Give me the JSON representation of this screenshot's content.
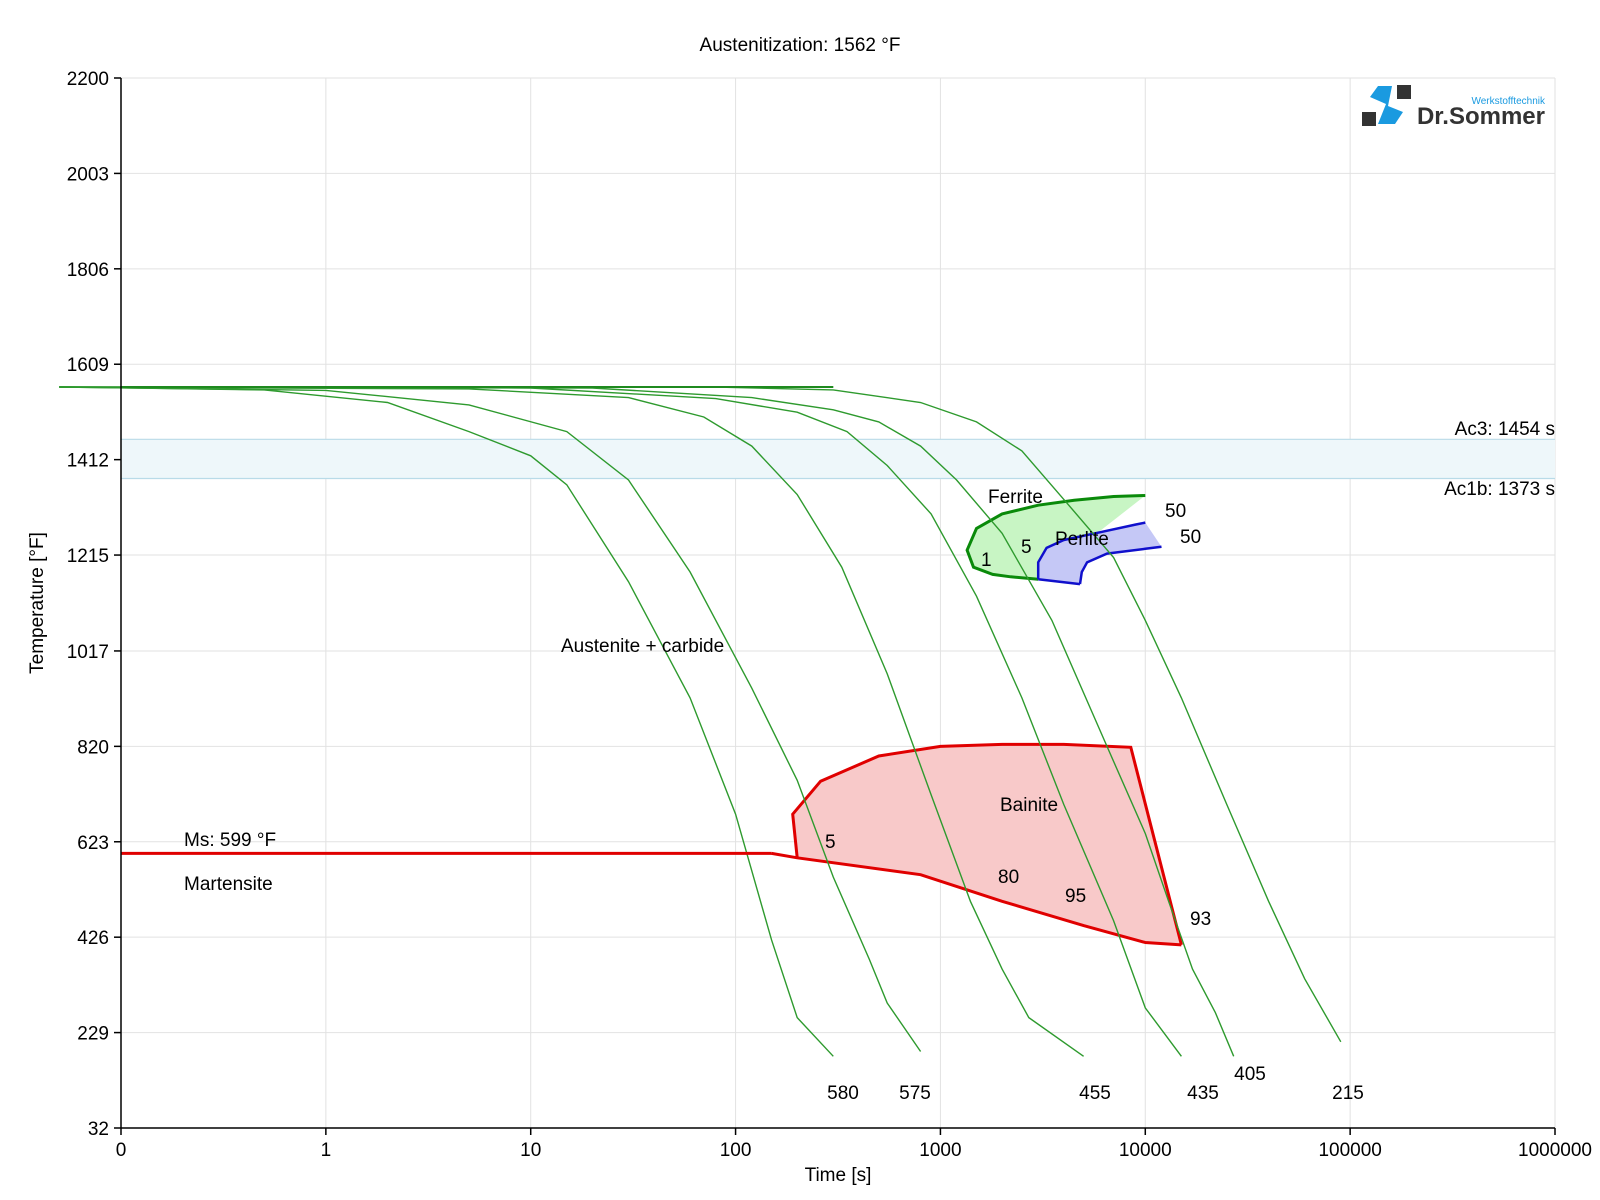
{
  "chart_data": {
    "type": "line",
    "title": "Austenitization: 1562 °F",
    "xlabel": "Time [s]",
    "ylabel": "Temperature [°F]",
    "x_scale": "log",
    "x_ticks": [
      "0",
      "1",
      "10",
      "100",
      "1000",
      "10000",
      "100000",
      "1000000"
    ],
    "y_ticks": [
      2200,
      2003,
      1806,
      1609,
      1412,
      1215,
      1017,
      820,
      623,
      426,
      229,
      32
    ],
    "ylim": [
      32,
      2200
    ],
    "grid": true,
    "logo": {
      "name": "Dr.Sommer",
      "subtitle": "Werkstofftechnik"
    },
    "colors": {
      "cooling": "#2e9a2e",
      "ferrite": "#0a8a0a",
      "perlite": "#1010cc",
      "bainite": "#e00000",
      "band": "#cfe8f0"
    },
    "critical_temps": {
      "ac3": {
        "label": "Ac3: 1454 s",
        "temp": 1454
      },
      "ac1b": {
        "label": "Ac1b: 1373 s",
        "temp": 1373
      }
    },
    "ms": {
      "label": "Ms: 599 °F",
      "temp": 599,
      "x_end": 150
    },
    "phase_labels": {
      "martensite": "Martensite",
      "austenite": "Austenite + carbide",
      "ferrite": "Ferrite",
      "perlite": "Perlite",
      "bainite": "Bainite"
    },
    "start_temp": 1562,
    "cooling_curves": [
      {
        "label": "580",
        "points": [
          [
            0.05,
            1562
          ],
          [
            0.5,
            1556
          ],
          [
            2,
            1530
          ],
          [
            5,
            1470
          ],
          [
            10,
            1420
          ],
          [
            15,
            1360
          ],
          [
            30,
            1160
          ],
          [
            60,
            920
          ],
          [
            100,
            680
          ],
          [
            150,
            420
          ],
          [
            200,
            260
          ],
          [
            300,
            180
          ]
        ]
      },
      {
        "label": "575",
        "points": [
          [
            0.05,
            1562
          ],
          [
            1,
            1555
          ],
          [
            5,
            1525
          ],
          [
            15,
            1470
          ],
          [
            30,
            1370
          ],
          [
            60,
            1180
          ],
          [
            120,
            940
          ],
          [
            200,
            750
          ],
          [
            300,
            550
          ],
          [
            450,
            380
          ],
          [
            550,
            290
          ],
          [
            800,
            190
          ]
        ]
      },
      {
        "label": "455",
        "points": [
          [
            0.05,
            1562
          ],
          [
            5,
            1558
          ],
          [
            30,
            1540
          ],
          [
            70,
            1500
          ],
          [
            120,
            1440
          ],
          [
            200,
            1340
          ],
          [
            330,
            1190
          ],
          [
            550,
            970
          ],
          [
            900,
            720
          ],
          [
            1400,
            500
          ],
          [
            2000,
            360
          ],
          [
            2700,
            260
          ],
          [
            5000,
            180
          ]
        ]
      },
      {
        "label": "435",
        "points": [
          [
            0.05,
            1562
          ],
          [
            10,
            1560
          ],
          [
            80,
            1538
          ],
          [
            200,
            1510
          ],
          [
            350,
            1470
          ],
          [
            550,
            1400
          ],
          [
            900,
            1300
          ],
          [
            1500,
            1130
          ],
          [
            2500,
            920
          ],
          [
            4000,
            700
          ],
          [
            7000,
            460
          ],
          [
            10000,
            280
          ],
          [
            15000,
            180
          ]
        ]
      },
      {
        "label": "405",
        "points": [
          [
            0.05,
            1562
          ],
          [
            20,
            1560
          ],
          [
            120,
            1540
          ],
          [
            300,
            1515
          ],
          [
            500,
            1490
          ],
          [
            800,
            1440
          ],
          [
            1200,
            1370
          ],
          [
            2000,
            1260
          ],
          [
            3500,
            1080
          ],
          [
            6500,
            820
          ],
          [
            10000,
            640
          ],
          [
            13000,
            500
          ],
          [
            17000,
            360
          ],
          [
            22000,
            270
          ],
          [
            27000,
            180
          ]
        ]
      },
      {
        "label": "215",
        "points": [
          [
            0.05,
            1562
          ],
          [
            80,
            1562
          ],
          [
            300,
            1556
          ],
          [
            800,
            1530
          ],
          [
            1500,
            1490
          ],
          [
            2500,
            1430
          ],
          [
            4000,
            1330
          ],
          [
            7000,
            1210
          ],
          [
            10000,
            1080
          ],
          [
            15000,
            920
          ],
          [
            25000,
            700
          ],
          [
            40000,
            500
          ],
          [
            60000,
            340
          ],
          [
            90000,
            210
          ]
        ]
      }
    ],
    "ferrite_region": {
      "label_1": "1",
      "label_5": "5",
      "label_50": "50",
      "outline": [
        [
          10000,
          1338
        ],
        [
          7000,
          1336
        ],
        [
          4500,
          1328
        ],
        [
          3000,
          1318
        ],
        [
          2000,
          1300
        ],
        [
          1500,
          1270
        ],
        [
          1350,
          1225
        ],
        [
          1450,
          1190
        ],
        [
          1800,
          1175
        ],
        [
          2200,
          1170
        ],
        [
          3000,
          1165
        ]
      ]
    },
    "perlite_region": {
      "label_50": "50",
      "outline": [
        [
          3000,
          1165
        ],
        [
          3000,
          1200
        ],
        [
          3300,
          1230
        ],
        [
          4000,
          1246
        ],
        [
          6000,
          1262
        ],
        [
          9000,
          1278
        ],
        [
          10000,
          1282
        ]
      ],
      "bottom": [
        [
          4800,
          1155
        ],
        [
          4900,
          1180
        ],
        [
          5200,
          1200
        ],
        [
          6500,
          1218
        ],
        [
          10000,
          1228
        ],
        [
          12000,
          1232
        ]
      ]
    },
    "bainite_region": {
      "label_5": "5",
      "label_80": "80",
      "label_95": "95",
      "label_93": "93",
      "outline": [
        [
          200,
          590
        ],
        [
          190,
          680
        ],
        [
          260,
          748
        ],
        [
          500,
          800
        ],
        [
          1000,
          820
        ],
        [
          2000,
          824
        ],
        [
          4000,
          824
        ],
        [
          8500,
          818
        ],
        [
          15000,
          410
        ]
      ],
      "bottom": [
        [
          150,
          599
        ],
        [
          200,
          590
        ],
        [
          800,
          555
        ],
        [
          2000,
          500
        ],
        [
          5000,
          450
        ],
        [
          10000,
          415
        ],
        [
          15000,
          410
        ]
      ]
    },
    "end_labels": [
      "580",
      "575",
      "455",
      "435",
      "405",
      "215"
    ]
  }
}
